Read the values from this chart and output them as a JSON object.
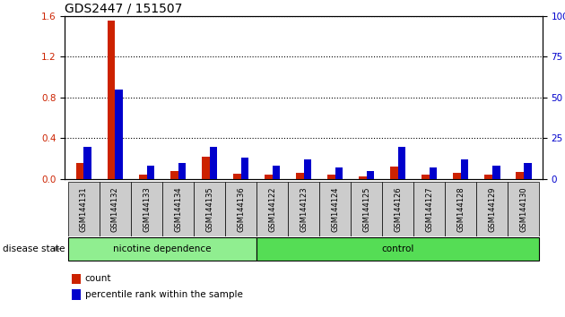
{
  "title": "GDS2447 / 151507",
  "samples": [
    "GSM144131",
    "GSM144132",
    "GSM144133",
    "GSM144134",
    "GSM144135",
    "GSM144136",
    "GSM144122",
    "GSM144123",
    "GSM144124",
    "GSM144125",
    "GSM144126",
    "GSM144127",
    "GSM144128",
    "GSM144129",
    "GSM144130"
  ],
  "count_values": [
    0.16,
    1.55,
    0.04,
    0.08,
    0.22,
    0.05,
    0.04,
    0.06,
    0.04,
    0.03,
    0.12,
    0.04,
    0.06,
    0.04,
    0.07
  ],
  "percentile_values": [
    20,
    55,
    8,
    10,
    20,
    13,
    8,
    12,
    7,
    5,
    20,
    7,
    12,
    8,
    10
  ],
  "ylim_left": [
    0,
    1.6
  ],
  "ylim_right": [
    0,
    100
  ],
  "yticks_left": [
    0,
    0.4,
    0.8,
    1.2,
    1.6
  ],
  "yticks_right": [
    0,
    25,
    50,
    75,
    100
  ],
  "count_color": "#cc2200",
  "percentile_color": "#0000cc",
  "group1_label": "nicotine dependence",
  "group2_label": "control",
  "group1_count": 6,
  "group2_count": 9,
  "group1_color": "#90ee90",
  "group2_color": "#55dd55",
  "disease_state_label": "disease state",
  "legend_count": "count",
  "legend_percentile": "percentile rank within the sample",
  "title_fontsize": 10,
  "bar_width": 0.25
}
